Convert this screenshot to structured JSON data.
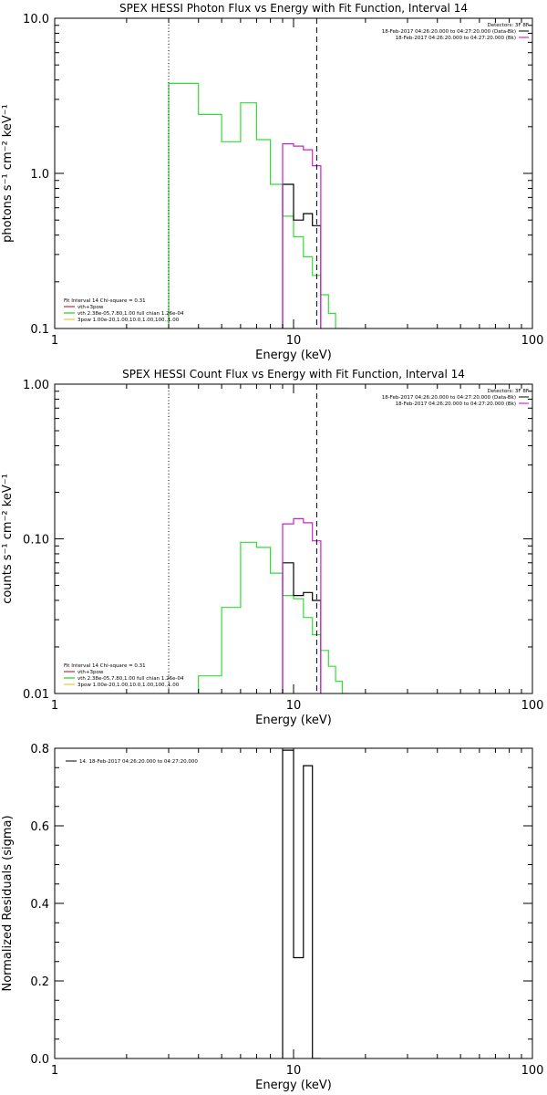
{
  "chart_data": [
    {
      "type": "line",
      "title": "SPEX HESSI Photon Flux vs Energy with Fit Function, Interval 14",
      "xlabel": "Energy (keV)",
      "ylabel": "photons s⁻¹ cm⁻² keV⁻¹",
      "xscale": "log",
      "yscale": "log",
      "xlim": [
        1,
        100
      ],
      "ylim": [
        0.1,
        10
      ],
      "xticks": [
        {
          "v": 1,
          "label": "1"
        },
        {
          "v": 10,
          "label": "10"
        },
        {
          "v": 100,
          "label": "100"
        }
      ],
      "yticks": [
        {
          "v": 0.1,
          "label": "0.1"
        },
        {
          "v": 1,
          "label": "1.0"
        },
        {
          "v": 10,
          "label": "10.0"
        }
      ],
      "vlines": [
        {
          "x": 3,
          "style": "dotted"
        },
        {
          "x": 12.5,
          "style": "dashed"
        }
      ],
      "legend_top": {
        "header": "Detectors: 3F 8F",
        "entries": [
          {
            "label": "18-Feb-2017 04:26:20.000 to 04:27:20.000 (Data-Bk)",
            "color": "#000000"
          },
          {
            "label": "18-Feb-2017 04:26:20.000 to 04:27:20.000 (Bk)",
            "color": "#c000c0"
          }
        ]
      },
      "legend_bottom": {
        "header": "Fit Interval 14    Chi-square = 0.31",
        "entries": [
          {
            "label": "vth+3pow",
            "color": "#c00000"
          },
          {
            "label": "vth 2.38e-05,7.80,1.00   full chian 1.26e-04",
            "color": "#00c000"
          },
          {
            "label": "3pow 1.00e-20,1.00,10.0,1.00,100.,1.00",
            "color": "#e0c000"
          }
        ]
      },
      "series": [
        {
          "color": "#33dd33",
          "edges": [
            3,
            4,
            5,
            6,
            7,
            8,
            9,
            10,
            11,
            12,
            13,
            14,
            15,
            16,
            17
          ],
          "values": [
            3.8,
            2.4,
            1.6,
            2.85,
            1.65,
            0.85,
            0.53,
            0.39,
            0.29,
            0.22,
            0.165,
            0.125,
            0.1,
            0.08
          ]
        },
        {
          "color": "#000000",
          "edges": [
            9,
            10,
            11,
            12,
            13
          ],
          "values": [
            0.85,
            0.5,
            0.55,
            0.46
          ]
        },
        {
          "color": "#cc22cc",
          "edges": [
            9,
            10,
            11,
            12,
            13
          ],
          "values": [
            1.55,
            1.5,
            1.42,
            1.12
          ]
        }
      ]
    },
    {
      "type": "line",
      "title": "SPEX HESSI Count Flux vs Energy with Fit Function, Interval 14",
      "xlabel": "Energy (keV)",
      "ylabel": "counts s⁻¹ cm⁻² keV⁻¹",
      "xscale": "log",
      "yscale": "log",
      "xlim": [
        1,
        100
      ],
      "ylim": [
        0.01,
        1
      ],
      "xticks": [
        {
          "v": 1,
          "label": "1"
        },
        {
          "v": 10,
          "label": "10"
        },
        {
          "v": 100,
          "label": "100"
        }
      ],
      "yticks": [
        {
          "v": 0.01,
          "label": "0.01"
        },
        {
          "v": 0.1,
          "label": "0.10"
        },
        {
          "v": 1,
          "label": "1.00"
        }
      ],
      "vlines": [
        {
          "x": 3,
          "style": "dotted"
        },
        {
          "x": 12.5,
          "style": "dashed"
        }
      ],
      "legend_top": {
        "header": "Detectors: 3F 8F",
        "entries": [
          {
            "label": "18-Feb-2017 04:26:20.000 to 04:27:20.000 (Data-Bk)",
            "color": "#000000"
          },
          {
            "label": "18-Feb-2017 04:26:20.000 to 04:27:20.000 (Bk)",
            "color": "#c000c0"
          }
        ]
      },
      "legend_bottom": {
        "header": "Fit Interval 14    Chi-square = 0.31",
        "entries": [
          {
            "label": "vth+3pow",
            "color": "#c00000"
          },
          {
            "label": "vth 2.38e-05,7.80,1.00   full chian 1.26e-04",
            "color": "#00c000"
          },
          {
            "label": "3pow 1.00e-20,1.00,10.0,1.00,100.,1.00",
            "color": "#e0c000"
          }
        ]
      },
      "series": [
        {
          "color": "#33dd33",
          "edges": [
            4,
            5,
            6,
            7,
            8,
            9,
            10,
            11,
            12,
            13,
            14,
            15,
            16,
            17
          ],
          "values": [
            0.013,
            0.036,
            0.095,
            0.088,
            0.06,
            0.043,
            0.041,
            0.031,
            0.024,
            0.019,
            0.015,
            0.012,
            0.01
          ]
        },
        {
          "color": "#000000",
          "edges": [
            9,
            10,
            11,
            12,
            13
          ],
          "values": [
            0.07,
            0.043,
            0.045,
            0.04
          ]
        },
        {
          "color": "#cc22cc",
          "edges": [
            9,
            10,
            11,
            12,
            13
          ],
          "values": [
            0.125,
            0.135,
            0.127,
            0.097
          ]
        }
      ]
    },
    {
      "type": "line",
      "title": "",
      "xlabel": "Energy (keV)",
      "ylabel": "Normalized Residuals (sigma)",
      "xscale": "log",
      "yscale": "linear",
      "xlim": [
        1,
        100
      ],
      "ylim": [
        0,
        0.8
      ],
      "xticks": [
        {
          "v": 1,
          "label": "1"
        },
        {
          "v": 10,
          "label": "10"
        },
        {
          "v": 100,
          "label": "100"
        }
      ],
      "yticks": [
        {
          "v": 0,
          "label": "0.0"
        },
        {
          "v": 0.2,
          "label": "0.2"
        },
        {
          "v": 0.4,
          "label": "0.4"
        },
        {
          "v": 0.6,
          "label": "0.6"
        },
        {
          "v": 0.8,
          "label": "0.8"
        }
      ],
      "vlines": [],
      "legend_top": {
        "header": "",
        "entries": [
          {
            "label": "14. 18-Feb-2017 04:26:20.000 to 04:27:20.000",
            "color": "#000000"
          }
        ]
      },
      "legend_bottom": null,
      "series": [
        {
          "color": "#000000",
          "edges": [
            9,
            10,
            11,
            12,
            13
          ],
          "values": [
            0.795,
            0.26,
            0.755,
            0.0
          ]
        }
      ]
    }
  ]
}
